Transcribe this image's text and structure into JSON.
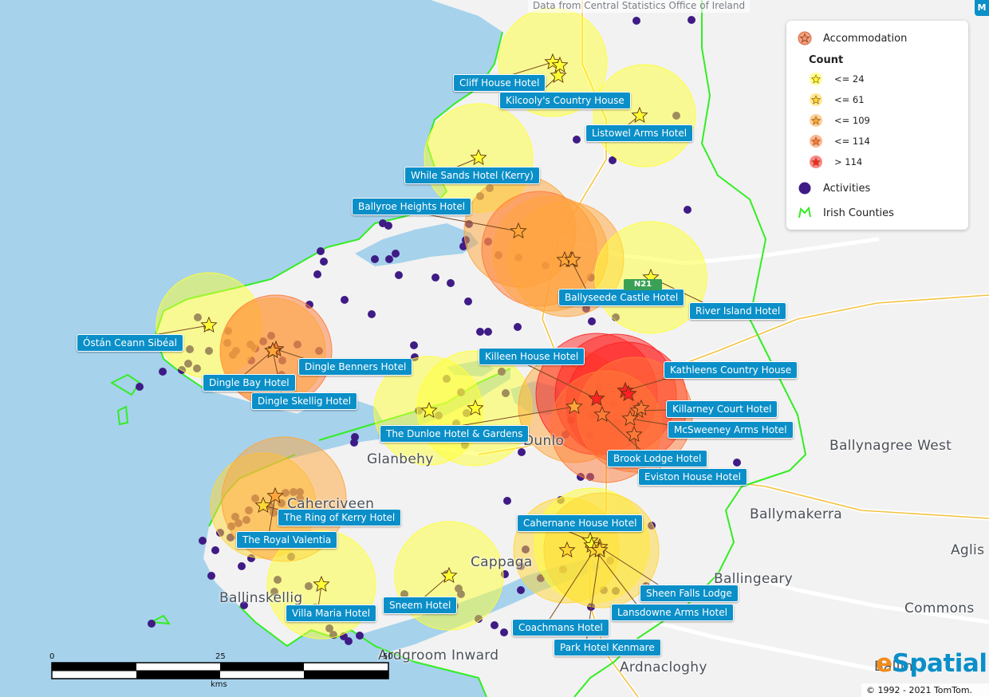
{
  "attribution": "Data from Central Statistics Office of Ireland",
  "corner_button": "M",
  "legend": {
    "accommodation": "Accommodation",
    "count_title": "Count",
    "classes": [
      {
        "label": "<= 24",
        "color": "#ffff33"
      },
      {
        "label": "<= 61",
        "color": "#ffd633"
      },
      {
        "label": "<= 109",
        "color": "#ffa53a"
      },
      {
        "label": "<= 114",
        "color": "#ff7a38"
      },
      {
        "label": "> 114",
        "color": "#ff2222"
      }
    ],
    "activities": "Activities",
    "counties": "Irish Counties"
  },
  "colors": {
    "activity": "#3f1b86",
    "county_border": "#33ee22",
    "sea": "#a6d2ec",
    "land": "#f2f2f2",
    "label_bg": "#0a8fc8"
  },
  "hotel_labels": [
    "Cliff House Hotel",
    "Kilcooly's Country House",
    "Listowel Arms Hotel",
    "While Sands Hotel (Kerry)",
    "Ballyroe Heights Hotel",
    "Ballyseede Castle Hotel",
    "River Island Hotel",
    "Óstán Ceann Sibéal",
    "Dingle Benners Hotel",
    "Dingle Bay Hotel",
    "Dingle Skellig Hotel",
    "Killeen House Hotel",
    "Kathleens Country House",
    "Killarney Court Hotel",
    "McSweeney Arms Hotel",
    "The Dunloe Hotel & Gardens",
    "Brook Lodge Hotel",
    "Eviston House Hotel",
    "The Ring of Kerry Hotel",
    "The Royal Valentia",
    "Cahernane House Hotel",
    "Sheen Falls Lodge",
    "Lansdowne Arms Hotel",
    "Villa Maria Hotel",
    "Sneem Hotel",
    "Coachmans Hotel",
    "Park Hotel Kenmare"
  ],
  "place_labels": [
    "Ballynagree West",
    "Ballymakerra",
    "Ballingeary",
    "Commons",
    "Aglis",
    "Ardnacloghy",
    "Ardgroom Inward",
    "Cappaga",
    "Ballinskellig",
    "Caherciveen",
    "Glanbehy",
    "Dunlo",
    "Ballin"
  ],
  "road_shield": "N21",
  "scalebar": {
    "ticks": [
      "0",
      "25",
      "50"
    ],
    "unit": "kms"
  },
  "logo": {
    "accent": "e",
    "rest": "Spatial"
  },
  "copyright": "© 1992 - 2021 TomTom."
}
